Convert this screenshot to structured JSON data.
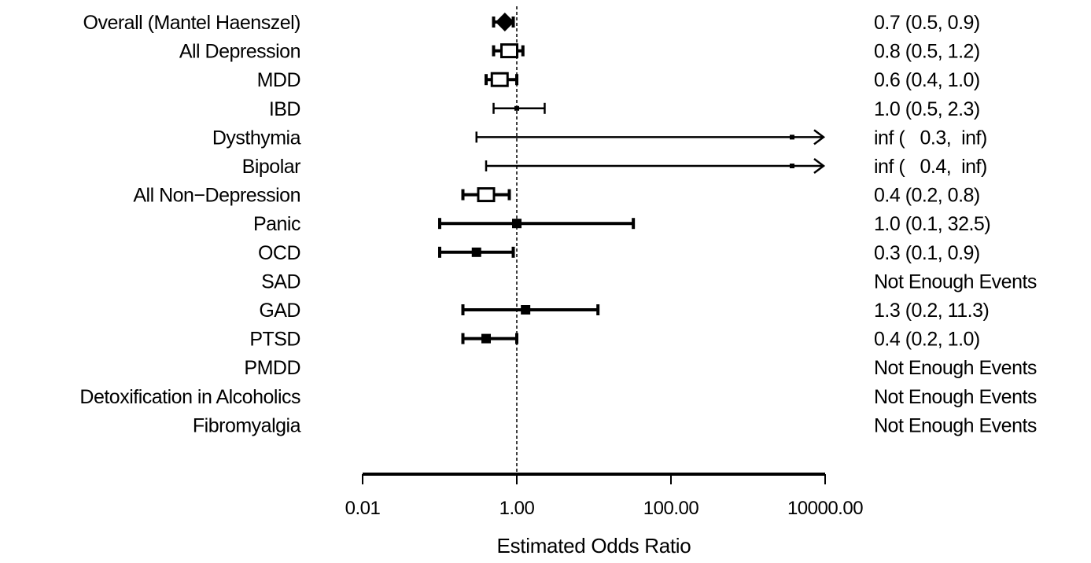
{
  "chart_data": {
    "type": "forest",
    "xlabel": "Estimated Odds Ratio",
    "x_scale": "log10",
    "xlim": [
      0.01,
      10000
    ],
    "x_ticks": [
      0.01,
      1,
      100,
      10000
    ],
    "x_tick_labels": [
      "0.01",
      "1.00",
      "100.00",
      "10000.00"
    ],
    "reference_line": 1,
    "rows": [
      {
        "label": "Overall (Mantel Haenszel)",
        "estimate": 0.7,
        "lower": 0.5,
        "upper": 0.9,
        "marker": "diamond",
        "text": "0.7 (0.5, 0.9)"
      },
      {
        "label": "All Depression",
        "estimate": 0.8,
        "lower": 0.5,
        "upper": 1.2,
        "marker": "open-square",
        "text": "0.8 (0.5, 1.2)"
      },
      {
        "label": "MDD",
        "estimate": 0.6,
        "lower": 0.4,
        "upper": 1.0,
        "marker": "open-square",
        "text": "0.6 (0.4, 1.0)"
      },
      {
        "label": "IBD",
        "estimate": 1.0,
        "lower": 0.5,
        "upper": 2.3,
        "marker": "small-square",
        "text": "1.0 (0.5, 2.3)"
      },
      {
        "label": "Dysthymia",
        "estimate": null,
        "lower": 0.3,
        "upper": null,
        "marker": "arrow",
        "text": "inf (   0.3,  inf)"
      },
      {
        "label": "Bipolar",
        "estimate": null,
        "lower": 0.4,
        "upper": null,
        "marker": "arrow",
        "text": "inf (   0.4,  inf)"
      },
      {
        "label": "All Non−Depression",
        "estimate": 0.4,
        "lower": 0.2,
        "upper": 0.8,
        "marker": "open-square",
        "text": "0.4 (0.2, 0.8)"
      },
      {
        "label": "Panic",
        "estimate": 1.0,
        "lower": 0.1,
        "upper": 32.5,
        "marker": "filled-square",
        "text": "1.0 (0.1, 32.5)"
      },
      {
        "label": "OCD",
        "estimate": 0.3,
        "lower": 0.1,
        "upper": 0.9,
        "marker": "filled-square",
        "text": "0.3 (0.1, 0.9)"
      },
      {
        "label": "SAD",
        "estimate": null,
        "lower": null,
        "upper": null,
        "marker": "none",
        "text": "Not Enough Events"
      },
      {
        "label": "GAD",
        "estimate": 1.3,
        "lower": 0.2,
        "upper": 11.3,
        "marker": "filled-square",
        "text": "1.3 (0.2, 11.3)"
      },
      {
        "label": "PTSD",
        "estimate": 0.4,
        "lower": 0.2,
        "upper": 1.0,
        "marker": "filled-square",
        "text": "0.4 (0.2, 1.0)"
      },
      {
        "label": "PMDD",
        "estimate": null,
        "lower": null,
        "upper": null,
        "marker": "none",
        "text": "Not Enough Events"
      },
      {
        "label": "Detoxification in Alcoholics",
        "estimate": null,
        "lower": null,
        "upper": null,
        "marker": "none",
        "text": "Not Enough Events"
      },
      {
        "label": "Fibromyalgia",
        "estimate": null,
        "lower": null,
        "upper": null,
        "marker": "none",
        "text": "Not Enough Events"
      }
    ]
  }
}
